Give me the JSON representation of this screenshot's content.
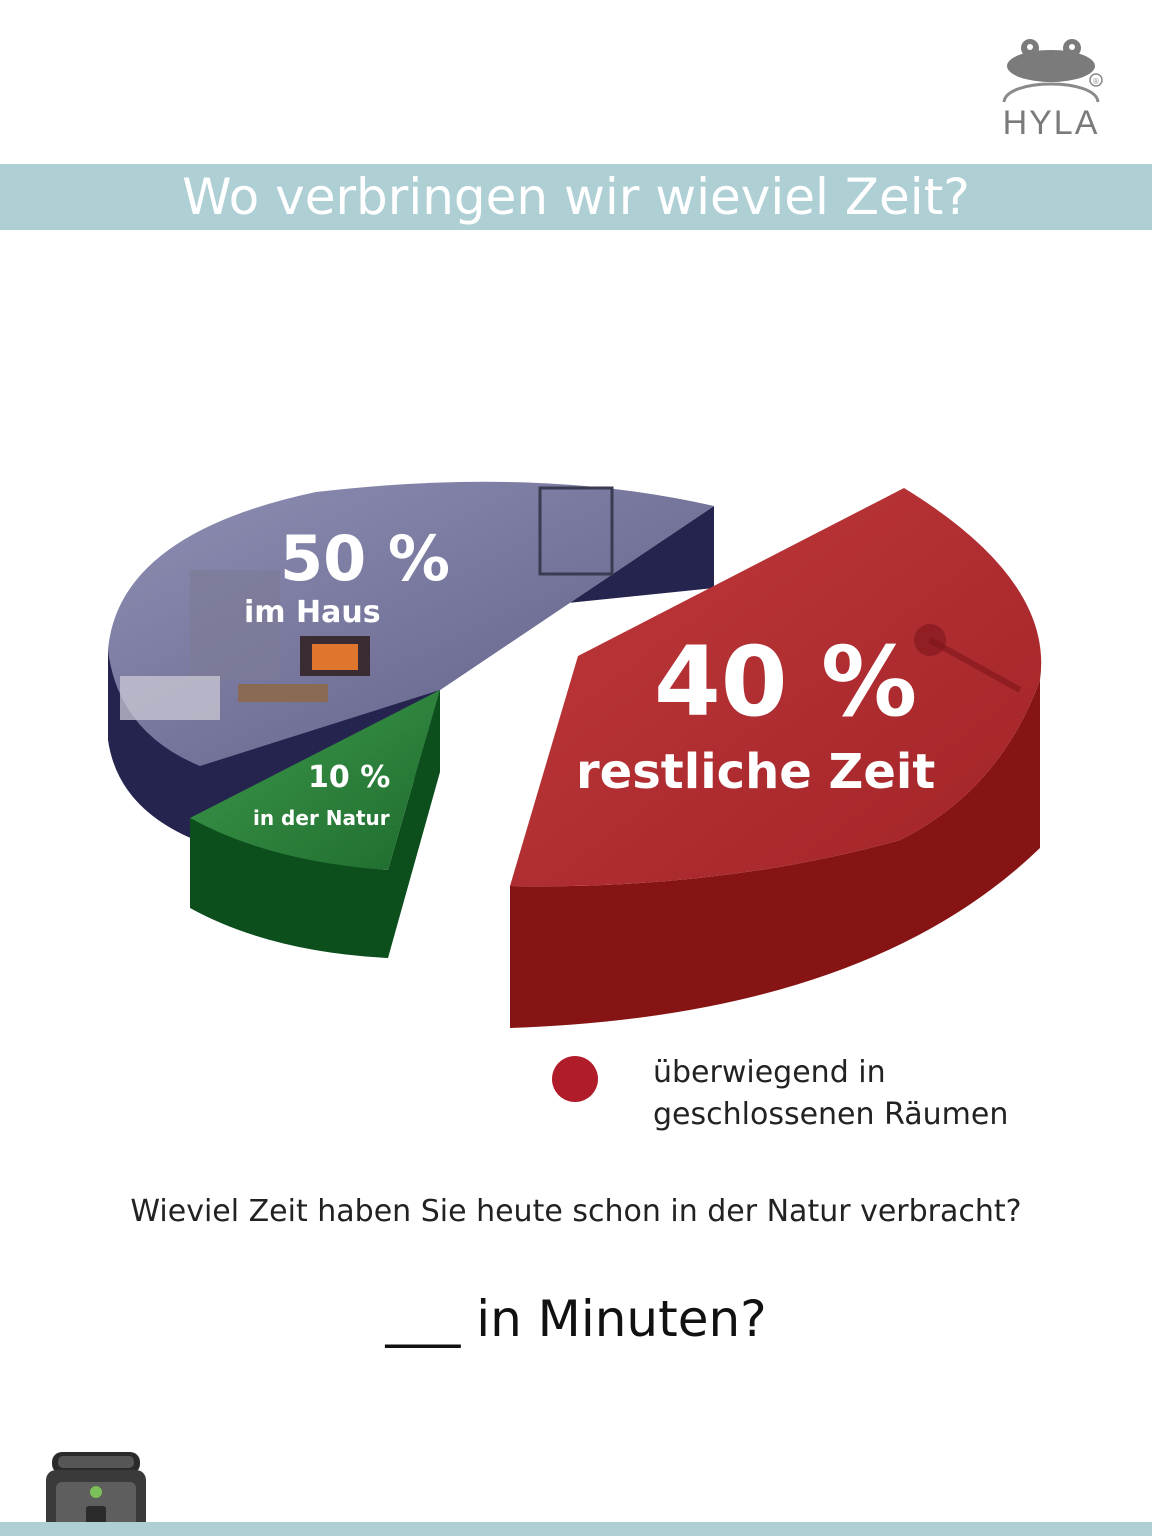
{
  "logo": {
    "brand": "HYLA",
    "registered": "®"
  },
  "title": "Wo verbringen wir wieviel Zeit?",
  "chart_data": {
    "type": "pie",
    "title": "Wo verbringen wir wieviel Zeit?",
    "slices": [
      {
        "value": 50,
        "value_label": "50 %",
        "label": "im Haus",
        "color": "#2a2a5c"
      },
      {
        "value": 10,
        "value_label": "10 %",
        "label": "in der Natur",
        "color": "#0e5a22"
      },
      {
        "value": 40,
        "value_label": "40 %",
        "label": "restliche Zeit",
        "color": "#a81e24"
      }
    ],
    "legend": [
      {
        "color": "#b01c2a",
        "line1": "überwiegend in",
        "line2": "geschlossenen Räumen"
      }
    ]
  },
  "question": "Wieviel Zeit haben Sie heute schon in der Natur verbracht?",
  "answer_prompt": "___ in Minuten?",
  "colors": {
    "band": "#aecfd4"
  },
  "icons": {
    "logo": "frog-logo-icon",
    "device": "air-purifier-device-icon"
  }
}
